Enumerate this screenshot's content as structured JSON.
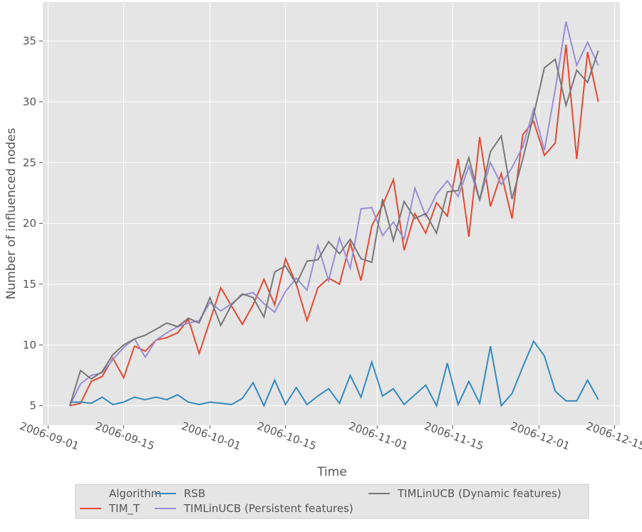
{
  "chart_data": {
    "type": "line",
    "xlabel": "Time",
    "ylabel": "Number of influenced nodes",
    "x": [
      "2006-09-05",
      "2006-09-07",
      "2006-09-09",
      "2006-09-11",
      "2006-09-13",
      "2006-09-15",
      "2006-09-17",
      "2006-09-19",
      "2006-09-21",
      "2006-09-23",
      "2006-09-25",
      "2006-09-27",
      "2006-09-29",
      "2006-10-01",
      "2006-10-03",
      "2006-10-05",
      "2006-10-07",
      "2006-10-09",
      "2006-10-11",
      "2006-10-13",
      "2006-10-15",
      "2006-10-17",
      "2006-10-19",
      "2006-10-21",
      "2006-10-23",
      "2006-10-25",
      "2006-10-27",
      "2006-10-29",
      "2006-10-31",
      "2006-11-02",
      "2006-11-04",
      "2006-11-06",
      "2006-11-08",
      "2006-11-10",
      "2006-11-12",
      "2006-11-14",
      "2006-11-16",
      "2006-11-18",
      "2006-11-20",
      "2006-11-22",
      "2006-11-24",
      "2006-11-26",
      "2006-11-28",
      "2006-11-30",
      "2006-12-02",
      "2006-12-04",
      "2006-12-06",
      "2006-12-08",
      "2006-12-10",
      "2006-12-12"
    ],
    "series": [
      {
        "name": "TIM_T",
        "color": "#E24A33",
        "values": [
          5.0,
          5.2,
          7.0,
          7.4,
          8.9,
          7.3,
          9.9,
          9.5,
          10.4,
          10.6,
          11.0,
          12.1,
          9.3,
          12.0,
          14.7,
          13.2,
          11.7,
          13.3,
          15.4,
          13.3,
          17.1,
          15.0,
          12.0,
          14.7,
          15.5,
          15.0,
          18.4,
          15.3,
          19.8,
          21.5,
          23.6,
          17.8,
          20.8,
          19.2,
          21.7,
          20.6,
          25.3,
          18.9,
          27.1,
          21.4,
          24.1,
          20.4,
          27.3,
          28.4,
          25.6,
          26.6,
          34.7,
          25.3,
          34.1,
          30.0
        ]
      },
      {
        "name": "RSB",
        "color": "#348ABD",
        "values": [
          5.3,
          5.3,
          5.2,
          5.7,
          5.1,
          5.3,
          5.7,
          5.5,
          5.7,
          5.5,
          5.9,
          5.3,
          5.1,
          5.3,
          5.2,
          5.1,
          5.6,
          6.9,
          5.0,
          7.1,
          5.1,
          6.5,
          5.1,
          5.8,
          6.4,
          5.2,
          7.5,
          5.7,
          8.6,
          5.8,
          6.4,
          5.1,
          5.9,
          6.7,
          5.0,
          8.5,
          5.1,
          7.0,
          5.2,
          9.9,
          5.0,
          6.0,
          8.2,
          10.3,
          9.1,
          6.2,
          5.4,
          5.4,
          7.1,
          5.5
        ]
      },
      {
        "name": "TIMLinUCB (Persistent features)",
        "color": "#988ED5",
        "values": [
          5.0,
          6.8,
          7.5,
          7.7,
          8.8,
          9.8,
          10.5,
          9.0,
          10.4,
          11.0,
          11.5,
          11.8,
          12.0,
          13.5,
          12.8,
          13.4,
          14.1,
          14.3,
          13.4,
          12.7,
          14.4,
          15.5,
          14.5,
          18.2,
          15.3,
          18.8,
          16.3,
          21.2,
          21.3,
          19.0,
          20.1,
          18.7,
          22.9,
          20.6,
          22.4,
          23.5,
          22.2,
          24.7,
          21.9,
          25.0,
          23.2,
          24.6,
          26.3,
          29.4,
          26.0,
          31.0,
          36.6,
          33.0,
          34.9,
          33.0
        ]
      },
      {
        "name": "TIMLinUCB (Dynamic features)",
        "color": "#777777",
        "values": [
          5.0,
          7.9,
          7.2,
          7.8,
          9.2,
          10.0,
          10.5,
          10.8,
          11.3,
          11.8,
          11.5,
          12.2,
          11.8,
          13.9,
          11.6,
          13.3,
          14.2,
          13.9,
          12.3,
          16.0,
          16.5,
          15.0,
          16.9,
          17.0,
          18.5,
          17.5,
          18.7,
          17.1,
          16.8,
          22.0,
          18.6,
          21.8,
          20.4,
          20.8,
          19.2,
          22.6,
          22.7,
          25.4,
          21.9,
          25.9,
          27.2,
          22.0,
          25.3,
          28.9,
          32.8,
          33.5,
          29.7,
          32.6,
          31.6,
          34.2
        ]
      }
    ],
    "xlim": [
      "2006-08-31",
      "2006-12-16"
    ],
    "xticks": [
      "2006-09-01",
      "2006-09-15",
      "2006-10-01",
      "2006-10-15",
      "2006-11-01",
      "2006-11-15",
      "2006-12-01",
      "2006-12-15"
    ],
    "ylim": [
      3.4,
      38.2
    ],
    "yticks": [
      5,
      10,
      15,
      20,
      25,
      30,
      35
    ],
    "grid": true,
    "legend_title": "Algorithm",
    "legend_position": "bottom"
  }
}
